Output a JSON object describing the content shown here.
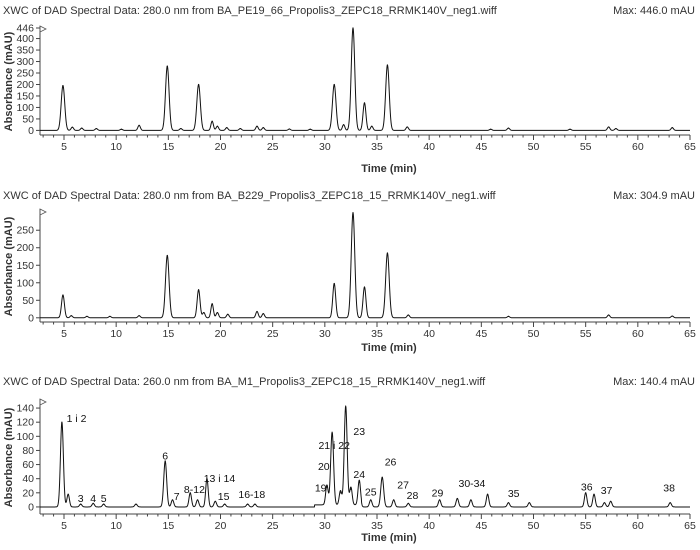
{
  "chart_data": [
    {
      "type": "line",
      "title": "XWC of DAD Spectral Data: 280.0 nm from BA_PE19_66_Propolis3_ZEPC18_RRMK140V_neg1.wiff",
      "max_label": "Max: 446.0 mAU",
      "xlabel": "Time (min)",
      "ylabel": "Absorbance (mAU)",
      "xlim": [
        2.7,
        65
      ],
      "ylim": [
        -20,
        446
      ],
      "x_ticks": [
        5,
        10,
        15,
        20,
        25,
        30,
        35,
        40,
        45,
        50,
        55,
        60,
        65
      ],
      "y_ticks": [
        0,
        50,
        100,
        150,
        200,
        250,
        300,
        350,
        400,
        446
      ],
      "y_tick_labels": [
        "0",
        "50",
        "100",
        "150",
        "200",
        "250",
        "300",
        "350",
        "400",
        "446"
      ],
      "peaks": [
        {
          "x": 4.9,
          "y": 195
        },
        {
          "x": 5.8,
          "y": 14
        },
        {
          "x": 6.7,
          "y": 10
        },
        {
          "x": 8.1,
          "y": 8
        },
        {
          "x": 10.5,
          "y": 5
        },
        {
          "x": 12.2,
          "y": 22
        },
        {
          "x": 14.9,
          "y": 280
        },
        {
          "x": 16.2,
          "y": 8
        },
        {
          "x": 17.9,
          "y": 200
        },
        {
          "x": 19.2,
          "y": 40
        },
        {
          "x": 19.7,
          "y": 18
        },
        {
          "x": 20.6,
          "y": 12
        },
        {
          "x": 21.9,
          "y": 8
        },
        {
          "x": 23.5,
          "y": 18
        },
        {
          "x": 24.1,
          "y": 12
        },
        {
          "x": 26.6,
          "y": 6
        },
        {
          "x": 28.6,
          "y": 5
        },
        {
          "x": 30.9,
          "y": 200
        },
        {
          "x": 31.8,
          "y": 25
        },
        {
          "x": 32.7,
          "y": 446
        },
        {
          "x": 33.8,
          "y": 120
        },
        {
          "x": 34.5,
          "y": 18
        },
        {
          "x": 36.0,
          "y": 285
        },
        {
          "x": 37.9,
          "y": 15
        },
        {
          "x": 45.9,
          "y": 5
        },
        {
          "x": 47.6,
          "y": 10
        },
        {
          "x": 53.5,
          "y": 5
        },
        {
          "x": 57.2,
          "y": 15
        },
        {
          "x": 57.9,
          "y": 8
        },
        {
          "x": 63.3,
          "y": 12
        }
      ]
    },
    {
      "type": "line",
      "title": "XWC of DAD Spectral Data: 280.0 nm from BA_B229_Propolis3_ZEPC18_15_RRMK140V_neg1.wiff",
      "max_label": "Max: 304.9 mAU",
      "xlabel": "Time (min)",
      "ylabel": "Absorbance (mAU)",
      "xlim": [
        2.7,
        65
      ],
      "ylim": [
        -12,
        304.9
      ],
      "x_ticks": [
        5,
        10,
        15,
        20,
        25,
        30,
        35,
        40,
        45,
        50,
        55,
        60,
        65
      ],
      "y_ticks": [
        0,
        50,
        100,
        150,
        200,
        250
      ],
      "y_tick_labels": [
        "0",
        "50",
        "100",
        "150",
        "200",
        "250"
      ],
      "peaks": [
        {
          "x": 4.9,
          "y": 65
        },
        {
          "x": 5.7,
          "y": 6
        },
        {
          "x": 7.2,
          "y": 4
        },
        {
          "x": 9.4,
          "y": 4
        },
        {
          "x": 12.2,
          "y": 6
        },
        {
          "x": 14.9,
          "y": 178
        },
        {
          "x": 17.9,
          "y": 80
        },
        {
          "x": 18.4,
          "y": 15
        },
        {
          "x": 19.2,
          "y": 40
        },
        {
          "x": 19.7,
          "y": 15
        },
        {
          "x": 20.7,
          "y": 10
        },
        {
          "x": 23.5,
          "y": 18
        },
        {
          "x": 24.1,
          "y": 12
        },
        {
          "x": 30.9,
          "y": 98
        },
        {
          "x": 32.7,
          "y": 300
        },
        {
          "x": 33.8,
          "y": 88
        },
        {
          "x": 36.0,
          "y": 185
        },
        {
          "x": 38.0,
          "y": 8
        },
        {
          "x": 47.6,
          "y": 4
        },
        {
          "x": 57.2,
          "y": 8
        },
        {
          "x": 63.3,
          "y": 5
        }
      ]
    },
    {
      "type": "line",
      "title": "XWC of DAD Spectral Data: 260.0 nm from BA_M1_Propolis3_ZEPC18_15_RRMK140V_neg1.wiff",
      "max_label": "Max: 140.4 mAU",
      "xlabel": "Time (min)",
      "ylabel": "Absorbance (mAU)",
      "xlim": [
        2.7,
        65
      ],
      "ylim": [
        -10,
        150
      ],
      "x_ticks": [
        5,
        10,
        15,
        20,
        25,
        30,
        35,
        40,
        45,
        50,
        55,
        60,
        65
      ],
      "y_ticks": [
        0,
        20,
        40,
        60,
        80,
        100,
        120,
        140
      ],
      "y_tick_labels": [
        "0",
        "20",
        "40",
        "60",
        "80",
        "100",
        "120",
        "140"
      ],
      "peaks": [
        {
          "x": 4.8,
          "y": 120
        },
        {
          "x": 5.4,
          "y": 18
        },
        {
          "x": 6.6,
          "y": 4
        },
        {
          "x": 7.8,
          "y": 5
        },
        {
          "x": 8.8,
          "y": 4
        },
        {
          "x": 11.9,
          "y": 4
        },
        {
          "x": 14.7,
          "y": 65
        },
        {
          "x": 15.4,
          "y": 10
        },
        {
          "x": 17.1,
          "y": 20
        },
        {
          "x": 17.8,
          "y": 10
        },
        {
          "x": 18.7,
          "y": 40
        },
        {
          "x": 19.5,
          "y": 8
        },
        {
          "x": 20.4,
          "y": 4
        },
        {
          "x": 22.6,
          "y": 4
        },
        {
          "x": 23.3,
          "y": 4
        },
        {
          "x": 30.2,
          "y": 28
        },
        {
          "x": 30.7,
          "y": 103
        },
        {
          "x": 31.5,
          "y": 20
        },
        {
          "x": 32.0,
          "y": 140
        },
        {
          "x": 32.5,
          "y": 25
        },
        {
          "x": 33.3,
          "y": 35
        },
        {
          "x": 34.4,
          "y": 10
        },
        {
          "x": 35.5,
          "y": 42
        },
        {
          "x": 36.6,
          "y": 10
        },
        {
          "x": 38.0,
          "y": 5
        },
        {
          "x": 41.0,
          "y": 10
        },
        {
          "x": 42.7,
          "y": 12
        },
        {
          "x": 44.0,
          "y": 10
        },
        {
          "x": 45.6,
          "y": 18
        },
        {
          "x": 47.6,
          "y": 6
        },
        {
          "x": 49.6,
          "y": 6
        },
        {
          "x": 55.0,
          "y": 20
        },
        {
          "x": 55.8,
          "y": 18
        },
        {
          "x": 56.8,
          "y": 6
        },
        {
          "x": 57.4,
          "y": 8
        },
        {
          "x": 63.1,
          "y": 6
        }
      ],
      "annotations": [
        {
          "text": "1 i 2",
          "x": 6.2,
          "y": 120
        },
        {
          "text": "3",
          "x": 6.6,
          "y": 7
        },
        {
          "text": "4",
          "x": 7.8,
          "y": 7
        },
        {
          "text": "5",
          "x": 8.8,
          "y": 7
        },
        {
          "text": "6",
          "x": 14.7,
          "y": 67
        },
        {
          "text": "7",
          "x": 15.8,
          "y": 10
        },
        {
          "text": "8-12",
          "x": 17.5,
          "y": 20
        },
        {
          "text": "13 i 14",
          "x": 19.9,
          "y": 35
        },
        {
          "text": "15",
          "x": 20.3,
          "y": 10
        },
        {
          "text": "16-18",
          "x": 23.0,
          "y": 13
        },
        {
          "text": "19",
          "x": 29.6,
          "y": 22
        },
        {
          "text": "20",
          "x": 29.9,
          "y": 52
        },
        {
          "text": "21 i 22",
          "x": 30.9,
          "y": 82
        },
        {
          "text": "23",
          "x": 33.3,
          "y": 102
        },
        {
          "text": "24",
          "x": 33.3,
          "y": 41
        },
        {
          "text": "25",
          "x": 34.4,
          "y": 16
        },
        {
          "text": "26",
          "x": 36.3,
          "y": 59
        },
        {
          "text": "27",
          "x": 37.5,
          "y": 26
        },
        {
          "text": "28",
          "x": 38.4,
          "y": 11
        },
        {
          "text": "29",
          "x": 40.8,
          "y": 15
        },
        {
          "text": "30-34",
          "x": 44.1,
          "y": 28
        },
        {
          "text": "35",
          "x": 48.1,
          "y": 14
        },
        {
          "text": "36",
          "x": 55.1,
          "y": 23
        },
        {
          "text": "37",
          "x": 57.0,
          "y": 18
        },
        {
          "text": "38",
          "x": 63.0,
          "y": 22
        }
      ]
    }
  ]
}
